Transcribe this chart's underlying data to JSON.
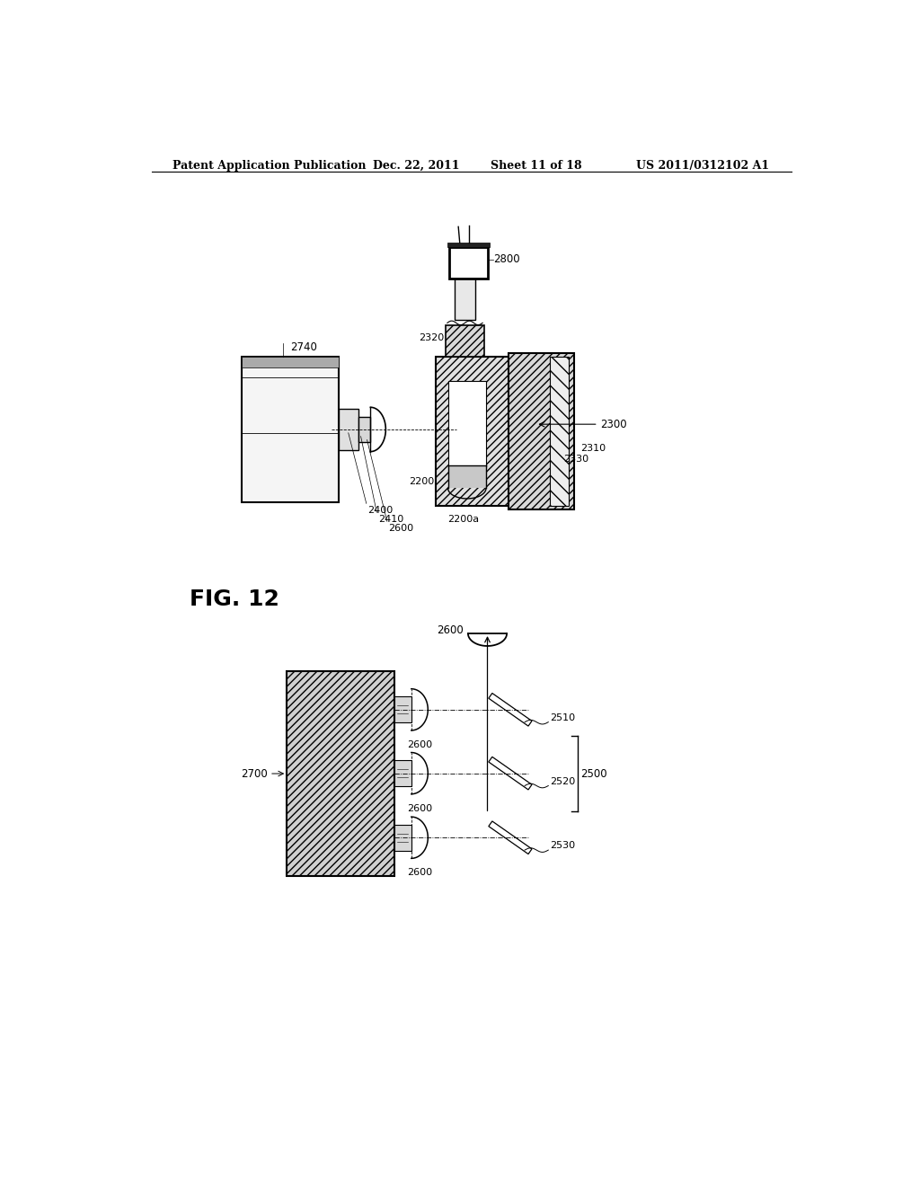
{
  "background_color": "#ffffff",
  "header_text": "Patent Application Publication",
  "header_date": "Dec. 22, 2011",
  "header_sheet": "Sheet 11 of 18",
  "header_patent": "US 2011/0312102 A1",
  "fig_label": "FIG. 12"
}
